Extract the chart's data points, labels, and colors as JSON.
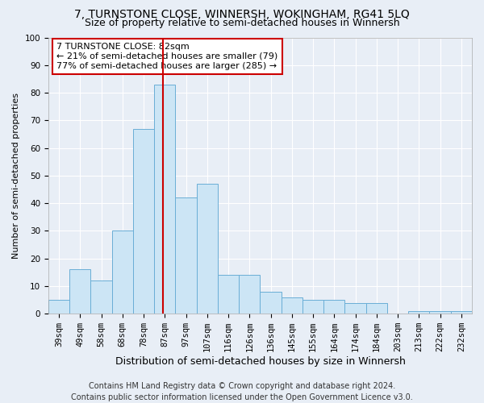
{
  "title": "7, TURNSTONE CLOSE, WINNERSH, WOKINGHAM, RG41 5LQ",
  "subtitle": "Size of property relative to semi-detached houses in Winnersh",
  "xlabel": "Distribution of semi-detached houses by size in Winnersh",
  "ylabel": "Number of semi-detached properties",
  "categories": [
    "39sqm",
    "49sqm",
    "58sqm",
    "68sqm",
    "78sqm",
    "87sqm",
    "97sqm",
    "107sqm",
    "116sqm",
    "126sqm",
    "136sqm",
    "145sqm",
    "155sqm",
    "164sqm",
    "174sqm",
    "184sqm",
    "203sqm",
    "213sqm",
    "222sqm",
    "232sqm"
  ],
  "values": [
    5,
    16,
    12,
    30,
    67,
    83,
    42,
    47,
    14,
    14,
    8,
    6,
    5,
    5,
    4,
    4,
    0,
    1,
    1,
    1
  ],
  "bar_color": "#cce5f5",
  "bar_edge_color": "#6aaed6",
  "vline_color": "#cc0000",
  "vline_x_index": 4.9,
  "annotation_text": "7 TURNSTONE CLOSE: 82sqm\n← 21% of semi-detached houses are smaller (79)\n77% of semi-detached houses are larger (285) →",
  "annotation_box_color": "#ffffff",
  "annotation_box_edge": "#cc0000",
  "ylim": [
    0,
    100
  ],
  "yticks": [
    0,
    10,
    20,
    30,
    40,
    50,
    60,
    70,
    80,
    90,
    100
  ],
  "footer": "Contains HM Land Registry data © Crown copyright and database right 2024.\nContains public sector information licensed under the Open Government Licence v3.0.",
  "bg_color": "#e8eef6",
  "plot_bg_color": "#e8eef6",
  "grid_color": "#ffffff",
  "title_fontsize": 10,
  "subtitle_fontsize": 9,
  "xlabel_fontsize": 9,
  "ylabel_fontsize": 8,
  "tick_fontsize": 7.5,
  "footer_fontsize": 7,
  "annotation_fontsize": 8
}
